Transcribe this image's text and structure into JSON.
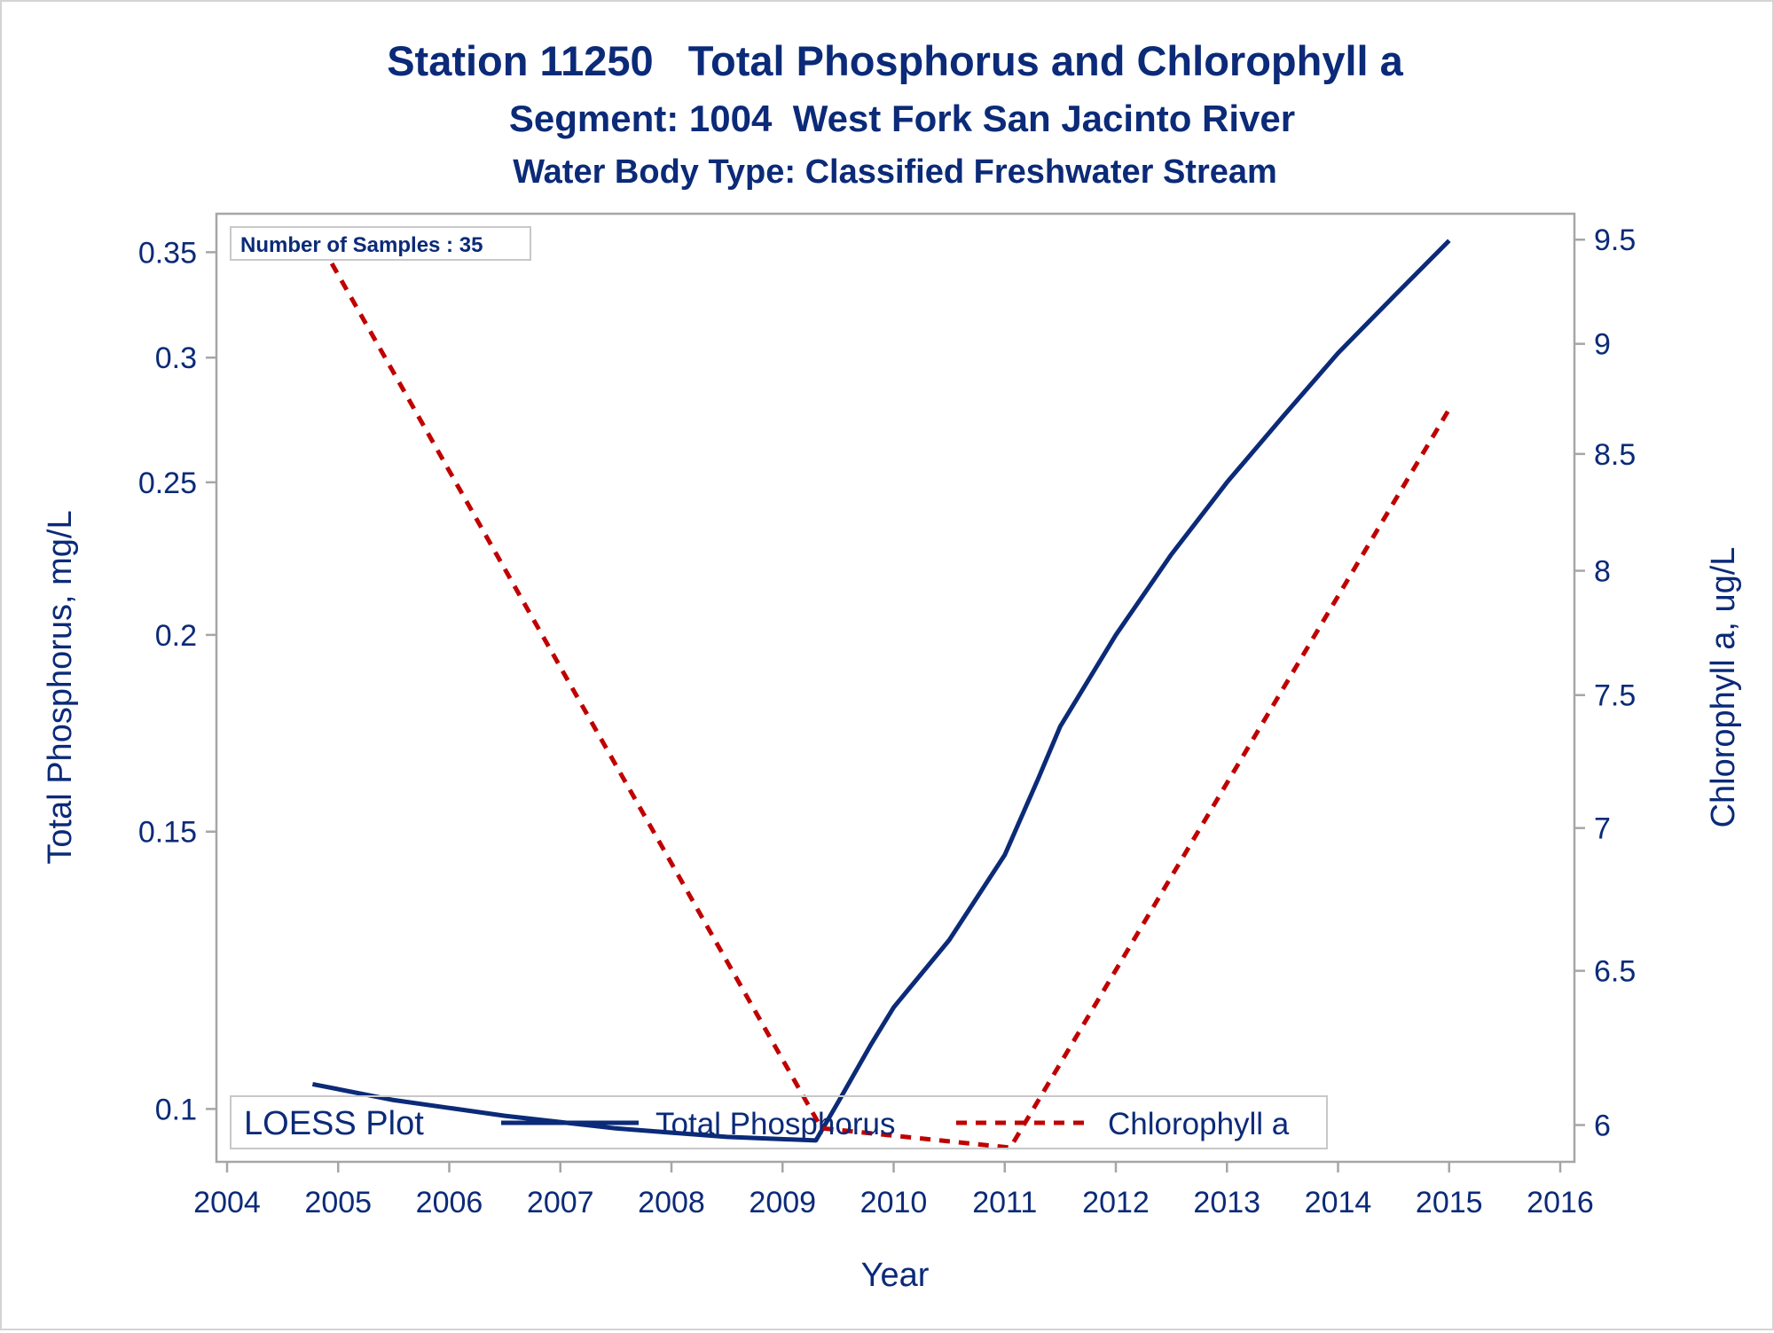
{
  "chart_data": {
    "type": "line",
    "title": "Station 11250   Total Phosphorus and Chlorophyll a",
    "subtitle": "Segment: 1004  West Fork San Jacinto River",
    "subtitle2": "Water Body Type: Classified Freshwater Stream",
    "xlabel": "Year",
    "ylabel": "Total Phosphorus, mg/L",
    "y2label": "Chlorophyll a, ug/L",
    "xlim": [
      2004,
      2016
    ],
    "ylim": [
      0.0945,
      0.365
    ],
    "y_scale": "log",
    "y2lim": [
      5.93,
      9.58
    ],
    "y2_scale": "log",
    "x_ticks": [
      "2004",
      "2005",
      "2006",
      "2007",
      "2008",
      "2009",
      "2010",
      "2011",
      "2012",
      "2013",
      "2014",
      "2015",
      "2016"
    ],
    "y_ticks": [
      "0.1",
      "0.15",
      "0.2",
      "0.25",
      "0.3",
      "0.35"
    ],
    "y2_ticks": [
      "6",
      "6.5",
      "7",
      "7.5",
      "8",
      "8.5",
      "9",
      "9.5"
    ],
    "inset_label": "Number of Samples : 35",
    "legend": {
      "title": "LOESS Plot",
      "position": "bottom-inside",
      "entries": [
        "Total Phosphorus",
        "Chlorophyll a"
      ]
    },
    "grid": false,
    "series": [
      {
        "name": "Total Phosphorus",
        "axis": "left",
        "color": "#0b2a78",
        "dash": "solid",
        "points": [
          [
            2004.77,
            0.1037
          ],
          [
            2005.5,
            0.1013
          ],
          [
            2006.5,
            0.099
          ],
          [
            2007.5,
            0.0972
          ],
          [
            2008.5,
            0.096
          ],
          [
            2009.3,
            0.0955
          ],
          [
            2009.5,
            0.101
          ],
          [
            2009.8,
            0.11
          ],
          [
            2010.0,
            0.116
          ],
          [
            2010.5,
            0.128
          ],
          [
            2011.0,
            0.145
          ],
          [
            2011.3,
            0.162
          ],
          [
            2011.5,
            0.175
          ],
          [
            2012.0,
            0.2
          ],
          [
            2012.5,
            0.225
          ],
          [
            2013.0,
            0.25
          ],
          [
            2013.5,
            0.275
          ],
          [
            2014.0,
            0.302
          ],
          [
            2014.5,
            0.328
          ],
          [
            2015.0,
            0.356
          ]
        ]
      },
      {
        "name": "Chlorophyll a",
        "axis": "right",
        "color": "#c00000",
        "dash": "dashed",
        "points": [
          [
            2004.77,
            9.55
          ],
          [
            2009.35,
            5.99
          ],
          [
            2011.05,
            5.93
          ],
          [
            2015.0,
            8.7
          ]
        ]
      }
    ]
  }
}
